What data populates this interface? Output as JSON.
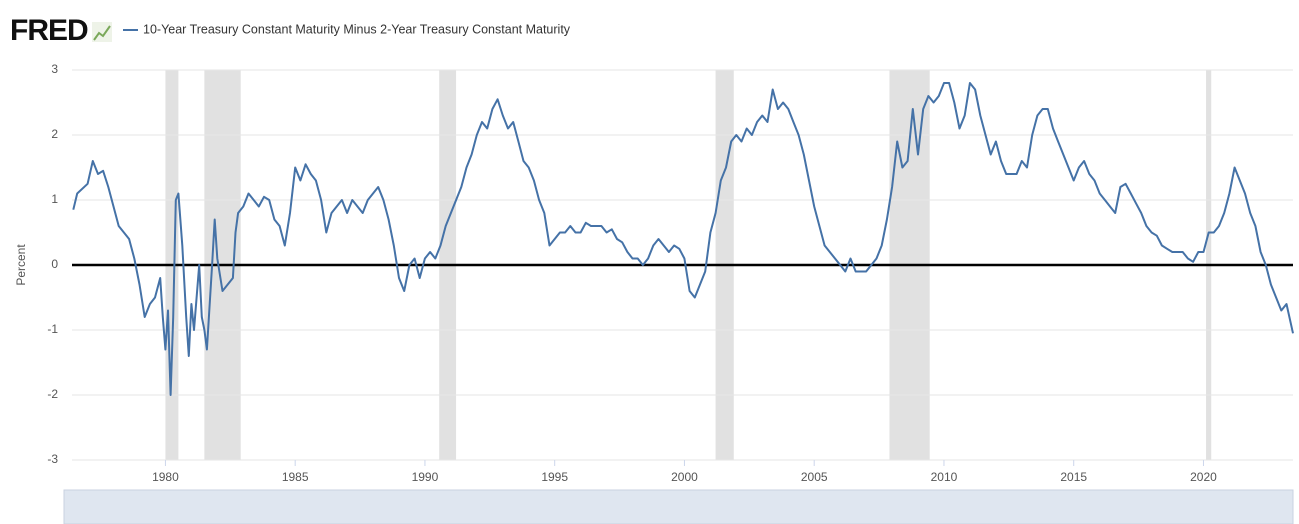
{
  "logo": "FRED",
  "chart_data": {
    "type": "line",
    "ylabel": "Percent",
    "xlim": [
      1976.4,
      2023.45
    ],
    "xticks": [
      1980,
      1985,
      1990,
      1995,
      2000,
      2005,
      2010,
      2015,
      2020
    ],
    "ylim": [
      -3,
      3
    ],
    "yticks": [
      -3,
      -2,
      -1,
      0,
      1,
      2,
      3
    ],
    "grid": true,
    "hline": 0,
    "recessions": [
      [
        1980.0,
        1980.5
      ],
      [
        1981.5,
        1982.9
      ],
      [
        1990.55,
        1991.2
      ],
      [
        2001.2,
        2001.9
      ],
      [
        2007.9,
        2009.45
      ],
      [
        2020.1,
        2020.3
      ]
    ],
    "x": [
      1976.45,
      1976.6,
      1977.0,
      1977.2,
      1977.4,
      1977.6,
      1977.8,
      1978.0,
      1978.2,
      1978.4,
      1978.6,
      1978.8,
      1979.0,
      1979.2,
      1979.4,
      1979.6,
      1979.8,
      1979.9,
      1980.0,
      1980.1,
      1980.2,
      1980.3,
      1980.4,
      1980.5,
      1980.65,
      1980.8,
      1980.9,
      1981.0,
      1981.1,
      1981.2,
      1981.3,
      1981.4,
      1981.5,
      1981.6,
      1981.8,
      1981.9,
      1982.0,
      1982.2,
      1982.4,
      1982.6,
      1982.7,
      1982.8,
      1983.0,
      1983.2,
      1983.4,
      1983.6,
      1983.8,
      1984.0,
      1984.2,
      1984.4,
      1984.6,
      1984.8,
      1985.0,
      1985.2,
      1985.4,
      1985.6,
      1985.8,
      1986.0,
      1986.2,
      1986.4,
      1986.6,
      1986.8,
      1987.0,
      1987.2,
      1987.4,
      1987.6,
      1987.8,
      1988.0,
      1988.2,
      1988.4,
      1988.6,
      1988.8,
      1989.0,
      1989.2,
      1989.4,
      1989.6,
      1989.8,
      1990.0,
      1990.2,
      1990.4,
      1990.6,
      1990.8,
      1991.0,
      1991.2,
      1991.4,
      1991.6,
      1991.8,
      1992.0,
      1992.2,
      1992.4,
      1992.6,
      1992.8,
      1993.0,
      1993.2,
      1993.4,
      1993.6,
      1993.8,
      1994.0,
      1994.2,
      1994.4,
      1994.6,
      1994.8,
      1995.0,
      1995.2,
      1995.4,
      1995.6,
      1995.8,
      1996.0,
      1996.2,
      1996.4,
      1996.6,
      1996.8,
      1997.0,
      1997.2,
      1997.4,
      1997.6,
      1997.8,
      1998.0,
      1998.2,
      1998.4,
      1998.6,
      1998.8,
      1999.0,
      1999.2,
      1999.4,
      1999.6,
      1999.8,
      2000.0,
      2000.2,
      2000.4,
      2000.6,
      2000.8,
      2001.0,
      2001.2,
      2001.4,
      2001.6,
      2001.8,
      2002.0,
      2002.2,
      2002.4,
      2002.6,
      2002.8,
      2003.0,
      2003.2,
      2003.4,
      2003.6,
      2003.8,
      2004.0,
      2004.2,
      2004.4,
      2004.6,
      2004.8,
      2005.0,
      2005.2,
      2005.4,
      2005.6,
      2005.8,
      2006.0,
      2006.2,
      2006.4,
      2006.6,
      2006.8,
      2007.0,
      2007.2,
      2007.4,
      2007.6,
      2007.8,
      2008.0,
      2008.2,
      2008.4,
      2008.6,
      2008.8,
      2009.0,
      2009.2,
      2009.4,
      2009.6,
      2009.8,
      2010.0,
      2010.2,
      2010.4,
      2010.6,
      2010.8,
      2011.0,
      2011.2,
      2011.4,
      2011.6,
      2011.8,
      2012.0,
      2012.2,
      2012.4,
      2012.6,
      2012.8,
      2013.0,
      2013.2,
      2013.4,
      2013.6,
      2013.8,
      2014.0,
      2014.2,
      2014.4,
      2014.6,
      2014.8,
      2015.0,
      2015.2,
      2015.4,
      2015.6,
      2015.8,
      2016.0,
      2016.2,
      2016.4,
      2016.6,
      2016.8,
      2017.0,
      2017.2,
      2017.4,
      2017.6,
      2017.8,
      2018.0,
      2018.2,
      2018.4,
      2018.6,
      2018.8,
      2019.0,
      2019.2,
      2019.4,
      2019.6,
      2019.8,
      2020.0,
      2020.2,
      2020.4,
      2020.6,
      2020.8,
      2021.0,
      2021.2,
      2021.4,
      2021.6,
      2021.8,
      2022.0,
      2022.2,
      2022.4,
      2022.6,
      2022.8,
      2023.0,
      2023.2,
      2023.45
    ],
    "series": [
      {
        "name": "10-Year Treasury Constant Maturity Minus 2-Year Treasury Constant Maturity",
        "color": "#4572a7",
        "values": [
          0.85,
          1.1,
          1.25,
          1.6,
          1.4,
          1.45,
          1.2,
          0.9,
          0.6,
          0.5,
          0.4,
          0.1,
          -0.3,
          -0.8,
          -0.6,
          -0.5,
          -0.2,
          -0.8,
          -1.3,
          -0.7,
          -2.0,
          -0.8,
          1.0,
          1.1,
          0.3,
          -0.8,
          -1.4,
          -0.6,
          -1.0,
          -0.5,
          0.0,
          -0.8,
          -1.0,
          -1.3,
          0.0,
          0.7,
          0.1,
          -0.4,
          -0.3,
          -0.2,
          0.5,
          0.8,
          0.9,
          1.1,
          1.0,
          0.9,
          1.05,
          1.0,
          0.7,
          0.6,
          0.3,
          0.8,
          1.5,
          1.3,
          1.55,
          1.4,
          1.3,
          1.0,
          0.5,
          0.8,
          0.9,
          1.0,
          0.8,
          1.0,
          0.9,
          0.8,
          1.0,
          1.1,
          1.2,
          1.0,
          0.7,
          0.3,
          -0.2,
          -0.4,
          0.0,
          0.1,
          -0.2,
          0.1,
          0.2,
          0.1,
          0.3,
          0.6,
          0.8,
          1.0,
          1.2,
          1.5,
          1.7,
          2.0,
          2.2,
          2.1,
          2.4,
          2.55,
          2.3,
          2.1,
          2.2,
          1.9,
          1.6,
          1.5,
          1.3,
          1.0,
          0.8,
          0.3,
          0.4,
          0.5,
          0.5,
          0.6,
          0.5,
          0.5,
          0.65,
          0.6,
          0.6,
          0.6,
          0.5,
          0.55,
          0.4,
          0.35,
          0.2,
          0.1,
          0.1,
          0.0,
          0.1,
          0.3,
          0.4,
          0.3,
          0.2,
          0.3,
          0.25,
          0.1,
          -0.4,
          -0.5,
          -0.3,
          -0.1,
          0.5,
          0.8,
          1.3,
          1.5,
          1.9,
          2.0,
          1.9,
          2.1,
          2.0,
          2.2,
          2.3,
          2.2,
          2.7,
          2.4,
          2.5,
          2.4,
          2.2,
          2.0,
          1.7,
          1.3,
          0.9,
          0.6,
          0.3,
          0.2,
          0.1,
          0.0,
          -0.1,
          0.1,
          -0.1,
          -0.1,
          -0.1,
          0.0,
          0.1,
          0.3,
          0.7,
          1.2,
          1.9,
          1.5,
          1.6,
          2.4,
          1.7,
          2.4,
          2.6,
          2.5,
          2.6,
          2.8,
          2.8,
          2.5,
          2.1,
          2.3,
          2.8,
          2.7,
          2.3,
          2.0,
          1.7,
          1.9,
          1.6,
          1.4,
          1.4,
          1.4,
          1.6,
          1.5,
          2.0,
          2.3,
          2.4,
          2.4,
          2.1,
          1.9,
          1.7,
          1.5,
          1.3,
          1.5,
          1.6,
          1.4,
          1.3,
          1.1,
          1.0,
          0.9,
          0.8,
          1.2,
          1.25,
          1.1,
          0.95,
          0.8,
          0.6,
          0.5,
          0.45,
          0.3,
          0.25,
          0.2,
          0.2,
          0.2,
          0.1,
          0.05,
          0.2,
          0.2,
          0.5,
          0.5,
          0.6,
          0.8,
          1.1,
          1.5,
          1.3,
          1.1,
          0.8,
          0.6,
          0.2,
          0.0,
          -0.3,
          -0.5,
          -0.7,
          -0.6,
          -1.05
        ]
      }
    ]
  }
}
